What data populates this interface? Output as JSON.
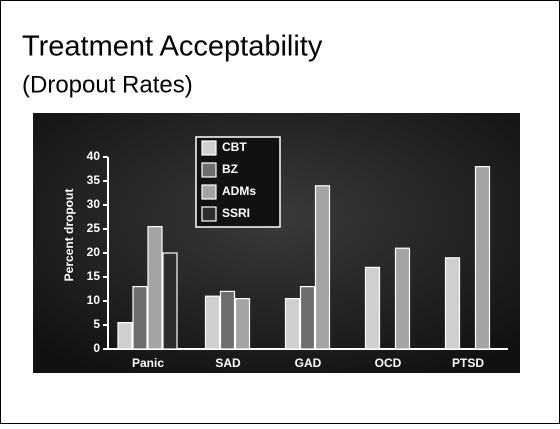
{
  "chart_data": {
    "type": "bar",
    "title": "Treatment Acceptability",
    "subtitle": "(Dropout Rates)",
    "y_label": "Percent dropout",
    "categories": [
      "Panic",
      "SAD",
      "GAD",
      "OCD",
      "PTSD"
    ],
    "series": [
      {
        "name": "CBT",
        "color": "#cfcfcf",
        "values": [
          5.5,
          11,
          10.5,
          17,
          19
        ]
      },
      {
        "name": "BZ",
        "color": "#6e6e6e",
        "values": [
          13,
          12,
          13,
          null,
          null
        ]
      },
      {
        "name": "ADMs",
        "color": "#a4a4a4",
        "values": [
          25.5,
          10.5,
          34,
          21,
          38
        ]
      },
      {
        "name": "SSRI",
        "color": "#2c2c2c",
        "values": [
          20,
          null,
          null,
          null,
          null
        ]
      }
    ],
    "ylim": [
      0,
      40
    ],
    "yticks": [
      0,
      5,
      10,
      15,
      20,
      25,
      30,
      35,
      40
    ]
  }
}
